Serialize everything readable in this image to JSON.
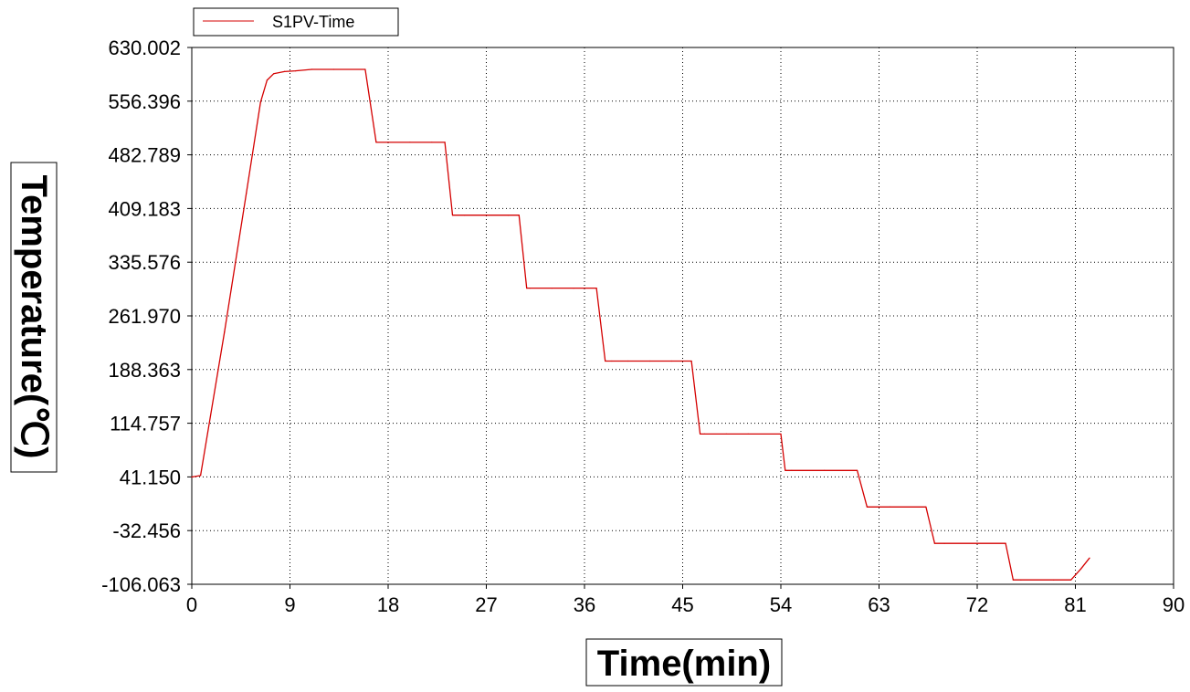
{
  "chart_data": {
    "type": "line",
    "xlabel": "Time(min)",
    "ylabel": "Temperature(℃)",
    "xlim": [
      0,
      90
    ],
    "ylim": [
      -106.063,
      630.002
    ],
    "x_ticks": [
      "0",
      "9",
      "18",
      "27",
      "36",
      "45",
      "54",
      "63",
      "72",
      "81",
      "90"
    ],
    "y_ticks": [
      "630.002",
      "556.396",
      "482.789",
      "409.183",
      "335.576",
      "261.970",
      "188.363",
      "114.757",
      "41.150",
      "-32.456",
      "-106.063"
    ],
    "grid": true,
    "legend_position": "top-left",
    "series": [
      {
        "name": "S1PV-Time",
        "color": "#d40000",
        "x": [
          0,
          0.8,
          3,
          5,
          6.3,
          6.9,
          7.5,
          8.5,
          9.5,
          11,
          13,
          15.9,
          16.9,
          18,
          20,
          22,
          23.2,
          23.9,
          25,
          27,
          29,
          30,
          30.7,
          31,
          33,
          35,
          37.1,
          37.9,
          38.5,
          40,
          42,
          44,
          45.8,
          46.6,
          47,
          49,
          51,
          54,
          54.4,
          55,
          58,
          61,
          61.9,
          62,
          64,
          67.3,
          68.1,
          69,
          72,
          74.6,
          75.3,
          76,
          79,
          80.6,
          81.5,
          82.3
        ],
        "y": [
          41,
          43,
          240,
          430,
          555,
          585,
          594,
          597,
          598,
          600,
          600,
          600,
          500,
          500,
          500,
          500,
          500,
          400,
          400,
          400,
          400,
          400,
          300,
          300,
          300,
          300,
          300,
          200,
          200,
          200,
          200,
          200,
          200,
          100,
          100,
          100,
          100,
          100,
          50,
          50,
          50,
          50,
          0,
          0,
          0,
          0,
          -50,
          -50,
          -50,
          -50,
          -100,
          -100,
          -100,
          -100,
          -85,
          -70
        ]
      }
    ]
  }
}
